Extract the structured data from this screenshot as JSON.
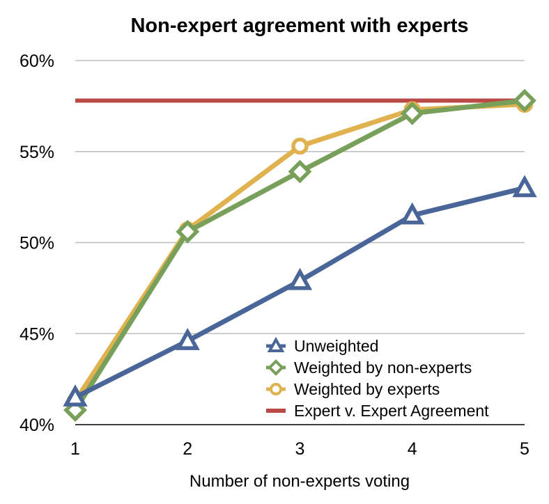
{
  "chart_data": {
    "type": "line",
    "title": "Non-expert agreement with experts",
    "xlabel": "Number of non-experts voting",
    "ylabel": "",
    "x": [
      1,
      2,
      3,
      4,
      5
    ],
    "x_tick_labels": [
      "1",
      "2",
      "3",
      "4",
      "5"
    ],
    "ylim": [
      40,
      60
    ],
    "y_ticks": [
      40,
      45,
      50,
      55,
      60
    ],
    "y_tick_labels": [
      "40%",
      "45%",
      "50%",
      "55%",
      "60%"
    ],
    "grid": "horizontal",
    "legend_position": "bottom-right",
    "series": [
      {
        "name": "Unweighted",
        "marker": "triangle",
        "color": "#4a6698",
        "values": [
          41.5,
          44.6,
          47.9,
          51.5,
          53.0
        ]
      },
      {
        "name": "Weighted by non-experts",
        "marker": "diamond",
        "color": "#79a05a",
        "values": [
          40.8,
          50.6,
          53.9,
          57.1,
          57.8
        ]
      },
      {
        "name": "Weighted by experts",
        "marker": "circle",
        "color": "#e0b24f",
        "values": [
          41.3,
          50.7,
          55.3,
          57.3,
          57.6
        ]
      },
      {
        "name": "Expert v. Expert Agreement",
        "marker": "none",
        "color": "#b94a46",
        "values": [
          57.8,
          57.8,
          57.8,
          57.8,
          57.8
        ]
      }
    ]
  }
}
